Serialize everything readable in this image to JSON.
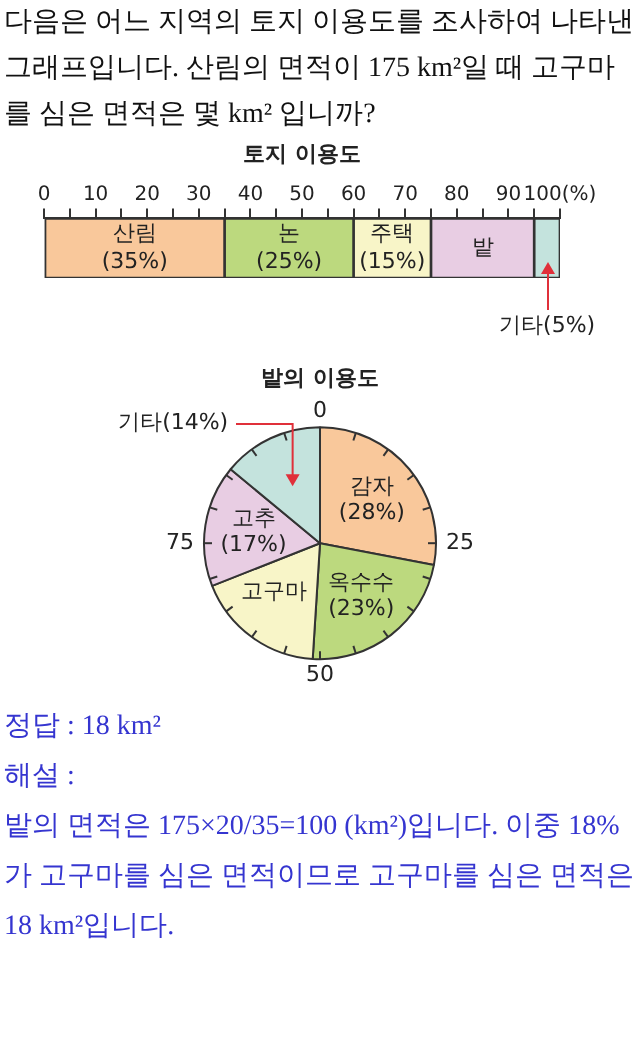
{
  "chart_data": [
    {
      "type": "bar",
      "title": "토지 이용도",
      "orientation": "horizontal",
      "stacked": true,
      "categories": [
        null
      ],
      "series": [
        {
          "name": "산림",
          "color": "#f9c89b",
          "values": [
            35
          ],
          "value_labels": [
            "(35%)"
          ]
        },
        {
          "name": "논",
          "color": "#bcd97e",
          "values": [
            25
          ],
          "value_labels": [
            "(25%)"
          ]
        },
        {
          "name": "주택",
          "color": "#f8f5c8",
          "values": [
            15
          ],
          "value_labels": [
            "(15%)"
          ]
        },
        {
          "name": "밭",
          "color": "#e8cde3",
          "values": [
            20
          ],
          "value_labels": [
            null
          ]
        },
        {
          "name": "기타",
          "color": "#c4e3dd",
          "values": [
            5
          ],
          "value_labels": [
            "(5%)"
          ]
        }
      ],
      "xlim": [
        0,
        100
      ],
      "xticks": [
        0,
        {
          "value": 5,
          "label": null
        },
        10,
        {
          "value": 15,
          "label": null
        },
        20,
        {
          "value": 25,
          "label": null
        },
        30,
        {
          "value": 35,
          "label": null
        },
        40,
        {
          "value": 45,
          "label": null
        },
        50,
        {
          "value": 55,
          "label": null
        },
        60,
        {
          "value": 65,
          "label": null
        },
        70,
        {
          "value": 75,
          "label": null
        },
        80,
        {
          "value": 85,
          "label": null
        },
        90,
        {
          "value": 95,
          "label": null
        },
        {
          "value": 100,
          "label": "100(%)"
        }
      ],
      "tick_labels": "x",
      "grid": false,
      "annotations": [
        "다음은 어느 지역의 토지 이용도를 조사하여 나타낸 그래프입니다. 산림의 면적이 175 km²일 때 고구마를 심은 면적은 몇 km² 입니까?"
      ]
    },
    {
      "type": "pie",
      "title": "밭의 이용도",
      "categories": [
        "감자",
        "옥수수",
        "고구마",
        "고추",
        "기타"
      ],
      "values": [
        28,
        23,
        18,
        17,
        14
      ],
      "value_labels": [
        "(28%)",
        "(23%)",
        null,
        "(17%)",
        "(14%)"
      ],
      "colors": [
        "#f9c89b",
        "#bcd97e",
        "#f8f5c8",
        "#e8cde3",
        "#c4e3dd"
      ],
      "annotations": [
        "0",
        "25",
        "50",
        "75"
      ]
    },
    {
      "type": "other",
      "annotations": [
        "정답 : 18 km²",
        "해설 :",
        "밭의 면적은 175×20/35=100 (km²)입니다. 이중 18%가 고구마를 심은 면적이므로 고구마를 심은 면적은 18 km²입니다."
      ]
    }
  ]
}
